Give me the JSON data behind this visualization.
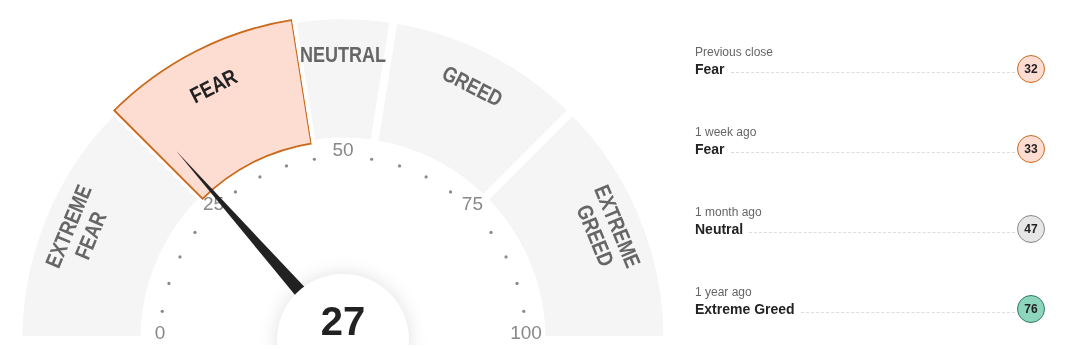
{
  "chart_data": [
    {
      "type": "donut",
      "categories": [
        "EXTREME FEAR",
        "FEAR",
        "NEUTRAL",
        "GREED",
        "EXTREME GREED"
      ],
      "values": [
        25,
        20,
        10,
        20,
        25
      ],
      "colors": [
        "#f5f5f5",
        "#fddcd2",
        "#f5f5f5",
        "#f5f5f5",
        "#f5f5f5"
      ],
      "needle": "FEAR",
      "annotations": [
        "27",
        "0",
        "25",
        "50",
        "75",
        "100"
      ],
      "legend": false
    },
    {
      "type": "other",
      "annotations": [
        "Previous close",
        "Fear",
        "32",
        "1 week ago",
        "Fear",
        "33",
        "1 month ago",
        "Neutral",
        "47",
        "1 year ago",
        "Extreme Greed",
        "76"
      ],
      "colors": [
        "#fddcd2",
        "#fddcd2",
        "#e6e6e6",
        "#8dd5bd"
      ]
    }
  ]
}
